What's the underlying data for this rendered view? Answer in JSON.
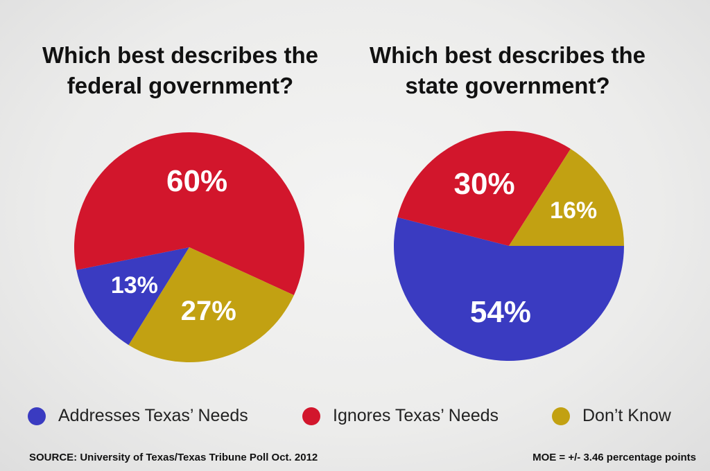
{
  "chart_data": [
    {
      "type": "pie",
      "title": "Which best describes the federal government?",
      "categories": [
        "Addresses Texas’ Needs",
        "Ignores Texas’ Needs",
        "Don’t Know"
      ],
      "values": [
        13,
        60,
        27
      ],
      "labels": [
        "13%",
        "60%",
        "27%"
      ],
      "colors": [
        "#3a3bc1",
        "#d2162c",
        "#c2a112"
      ]
    },
    {
      "type": "pie",
      "title": "Which best describes the state government?",
      "categories": [
        "Addresses Texas’ Needs",
        "Ignores Texas’ Needs",
        "Don’t Know"
      ],
      "values": [
        54,
        30,
        16
      ],
      "labels": [
        "54%",
        "30%",
        "16%"
      ],
      "colors": [
        "#3a3bc1",
        "#d2162c",
        "#c2a112"
      ]
    }
  ],
  "titles": {
    "left": "Which best describes the federal government?",
    "right": "Which best describes the state government?"
  },
  "legend": [
    {
      "label": "Addresses Texas’ Needs",
      "color": "#3a3bc1"
    },
    {
      "label": "Ignores Texas’ Needs",
      "color": "#d2162c"
    },
    {
      "label": "Don’t Know",
      "color": "#c2a112"
    }
  ],
  "footer": {
    "source": "SOURCE: University of Texas/Texas Tribune Poll Oct. 2012",
    "moe": "MOE = +/- 3.46 percentage points"
  }
}
